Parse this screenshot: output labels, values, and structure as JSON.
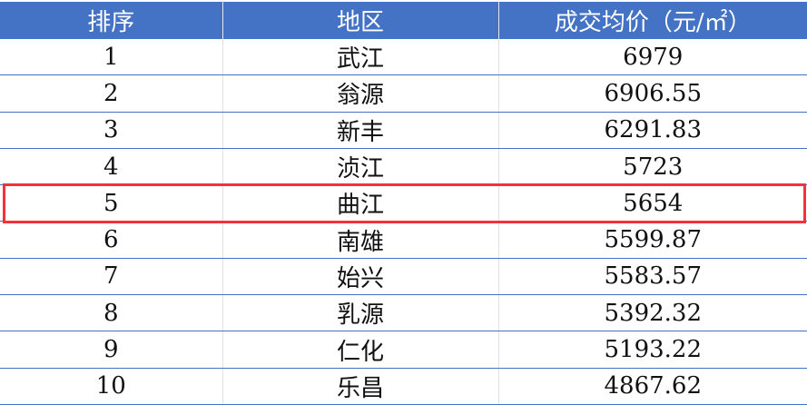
{
  "table": {
    "headers": [
      "排序",
      "地区",
      "成交均价（元/㎡）"
    ],
    "rows": [
      [
        "1",
        "武江",
        "6979"
      ],
      [
        "2",
        "翁源",
        "6906.55"
      ],
      [
        "3",
        "新丰",
        "6291.83"
      ],
      [
        "4",
        "浈江",
        "5723"
      ],
      [
        "5",
        "曲江",
        "5654"
      ],
      [
        "6",
        "南雄",
        "5599.87"
      ],
      [
        "7",
        "始兴",
        "5583.57"
      ],
      [
        "8",
        "乳源",
        "5392.32"
      ],
      [
        "9",
        "仁化",
        "5193.22"
      ],
      [
        "10",
        "乐昌",
        "4867.62"
      ]
    ],
    "highlighted_row": "5"
  },
  "colors": {
    "header_bg": "#4472C4",
    "highlight": "#F0343A"
  }
}
